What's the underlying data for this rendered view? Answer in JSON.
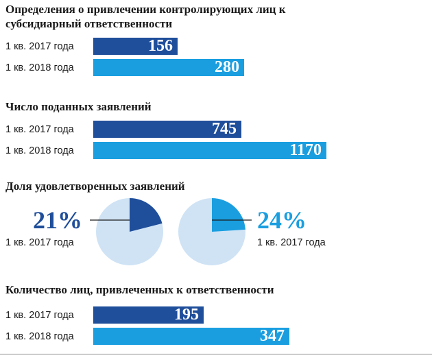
{
  "colors": {
    "dark_bar": "#1f4e9a",
    "light_bar": "#1a9ee0",
    "pie_bg": "#cfe3f5",
    "pie_2017": "#1f4e9a",
    "pie_2018": "#1a9ee0"
  },
  "chart_data": [
    {
      "type": "bar",
      "title": "Определения о привлечении контролирующих лиц к субсидиарный ответственности",
      "categories": [
        "1 кв. 2017 года",
        "1 кв. 2018 года"
      ],
      "values": [
        156,
        280
      ],
      "value_labels": [
        "156",
        "280"
      ]
    },
    {
      "type": "bar",
      "title": "Число поданных заявлений",
      "categories": [
        "1 кв. 2017 года",
        "1 кв. 2018 года"
      ],
      "values": [
        745,
        1170
      ],
      "value_labels": [
        "745",
        "1170"
      ]
    },
    {
      "type": "pie",
      "title": "Доля удовлетворенных заявлений",
      "slices": [
        {
          "label": "1 кв. 2017 года",
          "value": 21,
          "value_label": "21%"
        },
        {
          "label": "1 кв. 2017 года",
          "value": 24,
          "value_label": "24%"
        }
      ]
    },
    {
      "type": "bar",
      "title": "Количество лиц, привлеченных к ответственности",
      "categories": [
        "1 кв. 2017 года",
        "1 кв. 2018 года"
      ],
      "values": [
        195,
        347
      ],
      "value_labels": [
        "195",
        "347"
      ]
    }
  ]
}
